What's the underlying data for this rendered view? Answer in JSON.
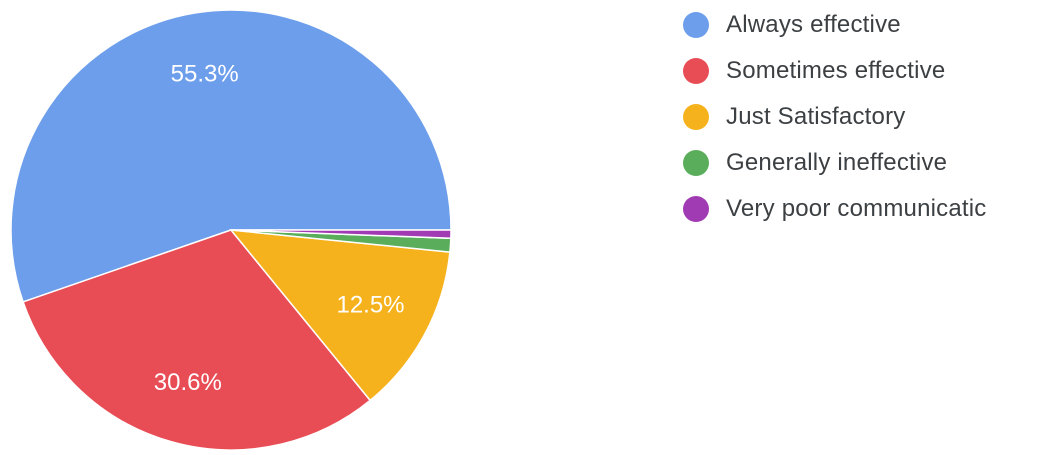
{
  "colors": {
    "background": "#ffffff",
    "slice_border": "#ffffff",
    "label_text": "#ffffff",
    "legend_text": "#3c4043"
  },
  "chart_data": {
    "type": "pie",
    "start_angle_deg": 0,
    "direction": "counterclockwise",
    "legend_position": "right",
    "slices": [
      {
        "label": "Always effective",
        "value": 55.3,
        "value_label": "55.3%",
        "color": "#6d9eeb"
      },
      {
        "label": "Sometimes effective",
        "value": 30.6,
        "value_label": "30.6%",
        "color": "#e84c54"
      },
      {
        "label": "Just Satisfactory",
        "value": 12.5,
        "value_label": "12.5%",
        "color": "#f6b21c"
      },
      {
        "label": "Generally ineffective",
        "value": 1.0,
        "value_label": "",
        "color": "#59ad5b"
      },
      {
        "label": "Very poor communicatic",
        "value": 0.6,
        "value_label": "",
        "color": "#a03bb3"
      }
    ]
  }
}
